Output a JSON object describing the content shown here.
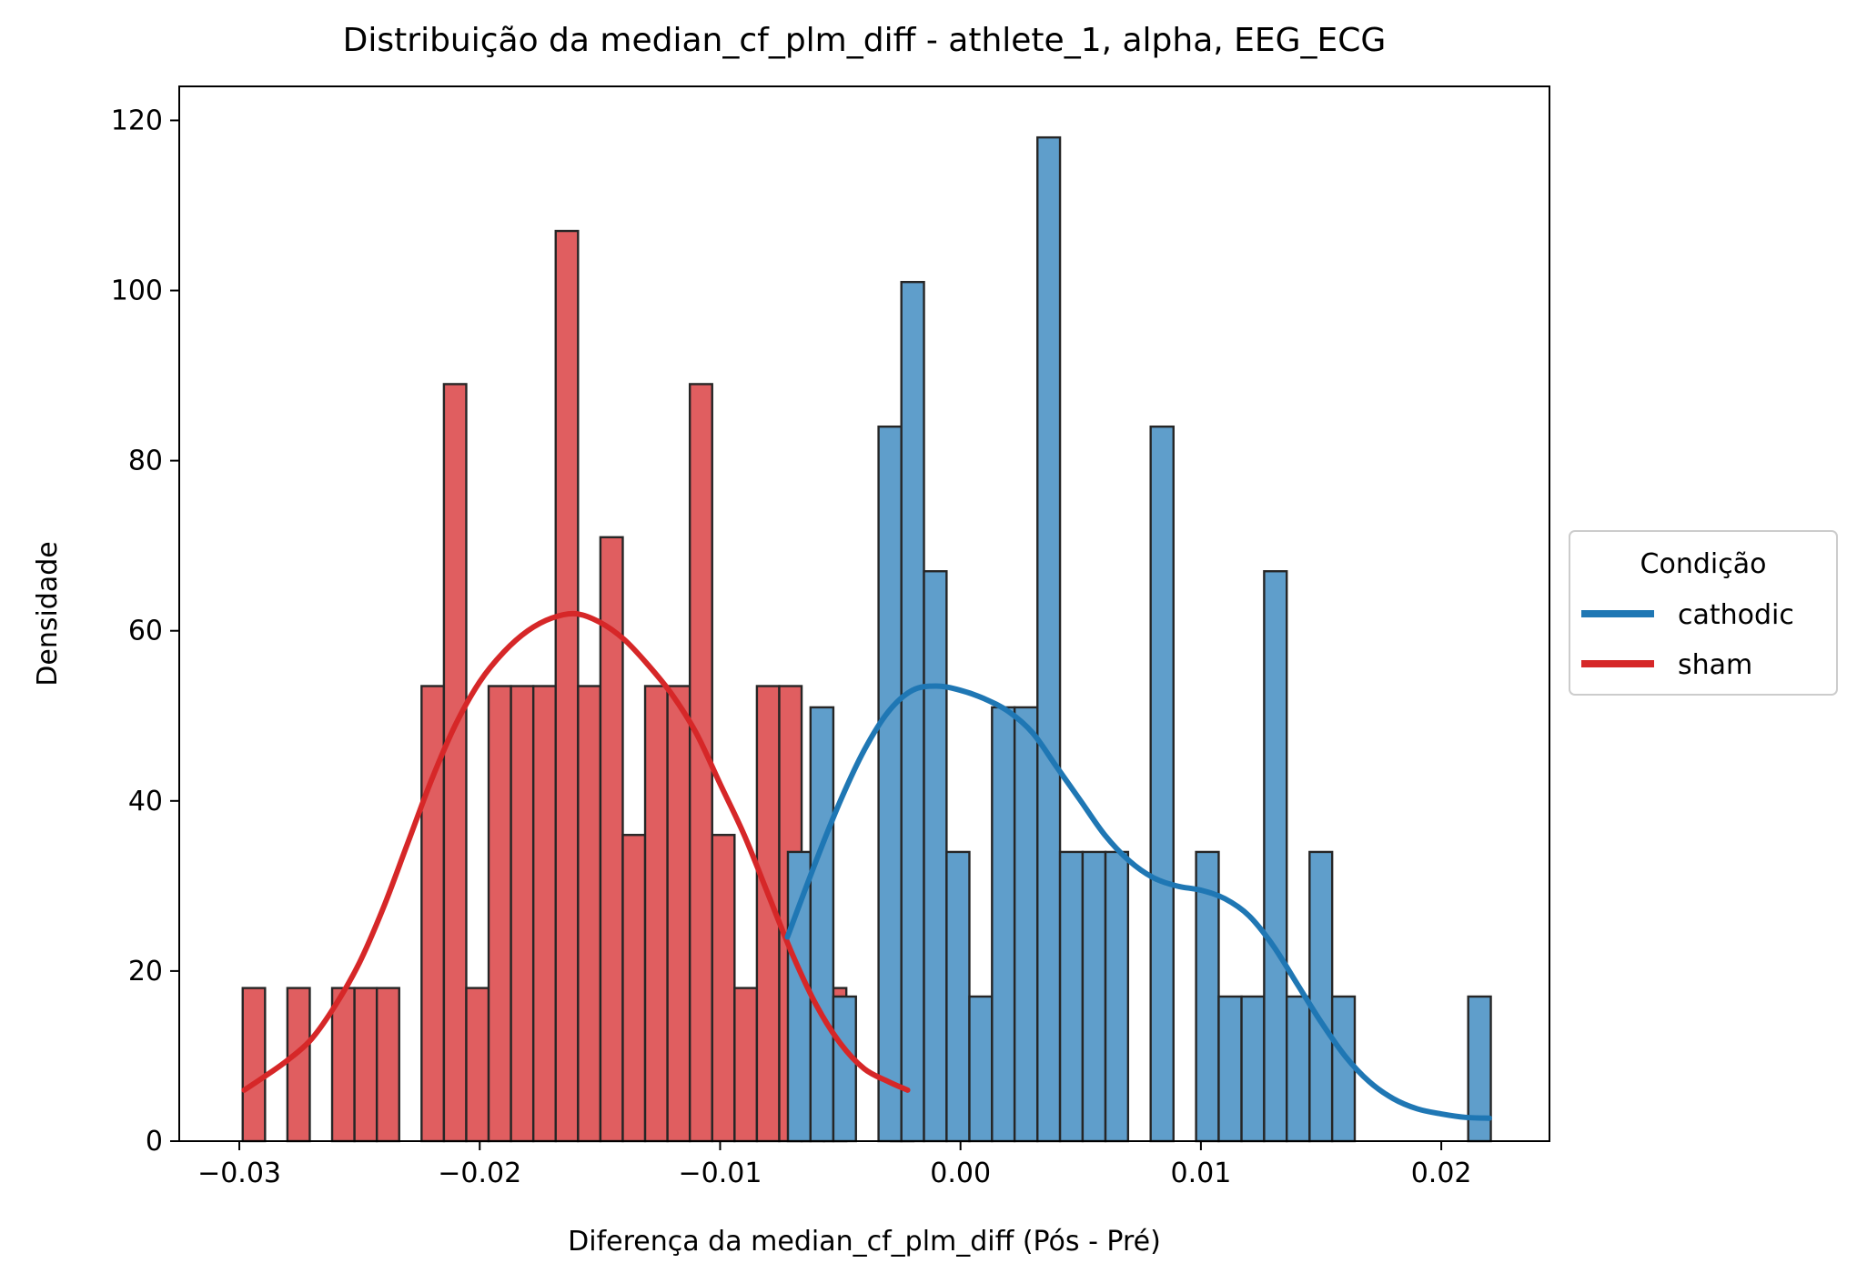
{
  "chart_data": {
    "type": "histogram",
    "title": "Distribuição da median_cf_plm_diff - athlete_1, alpha, EEG_ECG",
    "xlabel": "Diferença da median_cf_plm_diff (Pós - Pré)",
    "ylabel": "Densidade",
    "xlim": [
      -0.0325,
      0.0245
    ],
    "ylim": [
      0,
      124
    ],
    "xticks": [
      -0.03,
      -0.02,
      -0.01,
      0.0,
      0.01,
      0.02
    ],
    "xtick_labels": [
      "−0.03",
      "−0.02",
      "−0.01",
      "0.00",
      "0.01",
      "0.02"
    ],
    "yticks": [
      0,
      20,
      40,
      60,
      80,
      100,
      120
    ],
    "ytick_labels": [
      "0",
      "20",
      "40",
      "60",
      "80",
      "100",
      "120"
    ],
    "grid": false,
    "legend": {
      "title": "Condição",
      "placement": "outside-right",
      "entries": [
        "cathodic",
        "sham"
      ]
    },
    "series": [
      {
        "name": "cathodic",
        "color": "#1f77b4",
        "bar_fill": "#5f9ecb",
        "bars": [
          {
            "x0": -0.00718,
            "x1": -0.00624,
            "y": 34
          },
          {
            "x0": -0.00624,
            "x1": -0.00529,
            "y": 51
          },
          {
            "x0": -0.00529,
            "x1": -0.00435,
            "y": 17
          },
          {
            "x0": -0.00435,
            "x1": -0.00341,
            "y": 0
          },
          {
            "x0": -0.00341,
            "x1": -0.00246,
            "y": 84
          },
          {
            "x0": -0.00246,
            "x1": -0.00152,
            "y": 101
          },
          {
            "x0": -0.00152,
            "x1": -0.00058,
            "y": 67
          },
          {
            "x0": -0.00058,
            "x1": 0.00037,
            "y": 34
          },
          {
            "x0": 0.00037,
            "x1": 0.00131,
            "y": 17
          },
          {
            "x0": 0.00131,
            "x1": 0.00225,
            "y": 51
          },
          {
            "x0": 0.00225,
            "x1": 0.0032,
            "y": 51
          },
          {
            "x0": 0.0032,
            "x1": 0.00414,
            "y": 118
          },
          {
            "x0": 0.00414,
            "x1": 0.00508,
            "y": 34
          },
          {
            "x0": 0.00508,
            "x1": 0.00603,
            "y": 34
          },
          {
            "x0": 0.00603,
            "x1": 0.00697,
            "y": 34
          },
          {
            "x0": 0.00697,
            "x1": 0.00791,
            "y": 0
          },
          {
            "x0": 0.00791,
            "x1": 0.00886,
            "y": 84
          },
          {
            "x0": 0.00886,
            "x1": 0.0098,
            "y": 0
          },
          {
            "x0": 0.0098,
            "x1": 0.01074,
            "y": 34
          },
          {
            "x0": 0.01074,
            "x1": 0.01169,
            "y": 17
          },
          {
            "x0": 0.01169,
            "x1": 0.01263,
            "y": 17
          },
          {
            "x0": 0.01263,
            "x1": 0.01357,
            "y": 67
          },
          {
            "x0": 0.01357,
            "x1": 0.01452,
            "y": 17
          },
          {
            "x0": 0.01452,
            "x1": 0.01546,
            "y": 34
          },
          {
            "x0": 0.01546,
            "x1": 0.0164,
            "y": 17
          },
          {
            "x0": 0.0164,
            "x1": 0.01735,
            "y": 0
          },
          {
            "x0": 0.01735,
            "x1": 0.01829,
            "y": 0
          },
          {
            "x0": 0.01829,
            "x1": 0.01923,
            "y": 0
          },
          {
            "x0": 0.01923,
            "x1": 0.02018,
            "y": 0
          },
          {
            "x0": 0.02018,
            "x1": 0.02112,
            "y": 0
          },
          {
            "x0": 0.02112,
            "x1": 0.02206,
            "y": 17
          }
        ],
        "kde": {
          "x": [
            -0.0072,
            -0.006,
            -0.005,
            -0.004,
            -0.003,
            -0.002,
            -0.001,
            0.0,
            0.001,
            0.002,
            0.003,
            0.004,
            0.005,
            0.006,
            0.007,
            0.008,
            0.009,
            0.01,
            0.011,
            0.012,
            0.013,
            0.014,
            0.015,
            0.016,
            0.017,
            0.018,
            0.019,
            0.02,
            0.021,
            0.022
          ],
          "y": [
            24,
            33,
            40,
            46,
            50.5,
            53,
            53.5,
            53,
            52,
            50.5,
            48,
            44,
            40,
            36,
            33,
            31,
            30,
            29.5,
            28.5,
            26.5,
            23,
            18.5,
            14,
            10,
            7,
            5,
            3.8,
            3.2,
            2.8,
            2.7
          ]
        }
      },
      {
        "name": "sham",
        "color": "#d62728",
        "bar_fill": "#e05e60",
        "bars": [
          {
            "x0": -0.02986,
            "x1": -0.02893,
            "y": 18
          },
          {
            "x0": -0.02893,
            "x1": -0.028,
            "y": 0
          },
          {
            "x0": -0.028,
            "x1": -0.02707,
            "y": 18
          },
          {
            "x0": -0.02707,
            "x1": -0.02614,
            "y": 0
          },
          {
            "x0": -0.02614,
            "x1": -0.02521,
            "y": 18
          },
          {
            "x0": -0.02521,
            "x1": -0.02428,
            "y": 18
          },
          {
            "x0": -0.02428,
            "x1": -0.02335,
            "y": 18
          },
          {
            "x0": -0.02335,
            "x1": -0.02242,
            "y": 0
          },
          {
            "x0": -0.02242,
            "x1": -0.02149,
            "y": 53.5
          },
          {
            "x0": -0.02149,
            "x1": -0.02056,
            "y": 89
          },
          {
            "x0": -0.02056,
            "x1": -0.01963,
            "y": 18
          },
          {
            "x0": -0.01963,
            "x1": -0.0187,
            "y": 53.5
          },
          {
            "x0": -0.0187,
            "x1": -0.01777,
            "y": 53.5
          },
          {
            "x0": -0.01777,
            "x1": -0.01684,
            "y": 53.5
          },
          {
            "x0": -0.01684,
            "x1": -0.01591,
            "y": 107
          },
          {
            "x0": -0.01591,
            "x1": -0.01498,
            "y": 53.5
          },
          {
            "x0": -0.01498,
            "x1": -0.01405,
            "y": 71
          },
          {
            "x0": -0.01405,
            "x1": -0.01312,
            "y": 36
          },
          {
            "x0": -0.01312,
            "x1": -0.01219,
            "y": 53.5
          },
          {
            "x0": -0.01219,
            "x1": -0.01126,
            "y": 53.5
          },
          {
            "x0": -0.01126,
            "x1": -0.01033,
            "y": 89
          },
          {
            "x0": -0.01033,
            "x1": -0.0094,
            "y": 36
          },
          {
            "x0": -0.0094,
            "x1": -0.00847,
            "y": 18
          },
          {
            "x0": -0.00847,
            "x1": -0.00754,
            "y": 53.5
          },
          {
            "x0": -0.00754,
            "x1": -0.00661,
            "y": 53.5
          },
          {
            "x0": -0.00661,
            "x1": -0.00568,
            "y": 18
          },
          {
            "x0": -0.00568,
            "x1": -0.00475,
            "y": 18
          },
          {
            "x0": -0.00475,
            "x1": -0.00382,
            "y": 0
          },
          {
            "x0": -0.00382,
            "x1": -0.00289,
            "y": 0
          },
          {
            "x0": -0.00289,
            "x1": -0.00196,
            "y": 18
          }
        ],
        "kde": {
          "x": [
            -0.0298,
            -0.029,
            -0.028,
            -0.027,
            -0.026,
            -0.025,
            -0.024,
            -0.023,
            -0.022,
            -0.021,
            -0.02,
            -0.019,
            -0.018,
            -0.017,
            -0.016,
            -0.015,
            -0.014,
            -0.013,
            -0.012,
            -0.011,
            -0.01,
            -0.009,
            -0.008,
            -0.007,
            -0.006,
            -0.005,
            -0.004,
            -0.003,
            -0.0022
          ],
          "y": [
            6,
            7.5,
            9.5,
            12,
            16,
            21,
            27.5,
            35,
            42.5,
            49,
            54,
            57.5,
            60,
            61.5,
            62,
            61,
            59,
            56,
            52.5,
            48,
            42,
            36,
            29,
            22,
            16,
            11.5,
            8.5,
            7,
            6
          ]
        }
      }
    ]
  }
}
